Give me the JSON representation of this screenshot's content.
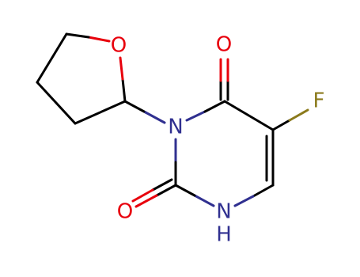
{
  "atoms": [
    {
      "label": "O"
    },
    {
      "label": "O"
    },
    {
      "label": "F"
    },
    {
      "label": "N"
    },
    {
      "label": "O"
    },
    {
      "label": "N"
    },
    {
      "label": "H"
    }
  ]
}
